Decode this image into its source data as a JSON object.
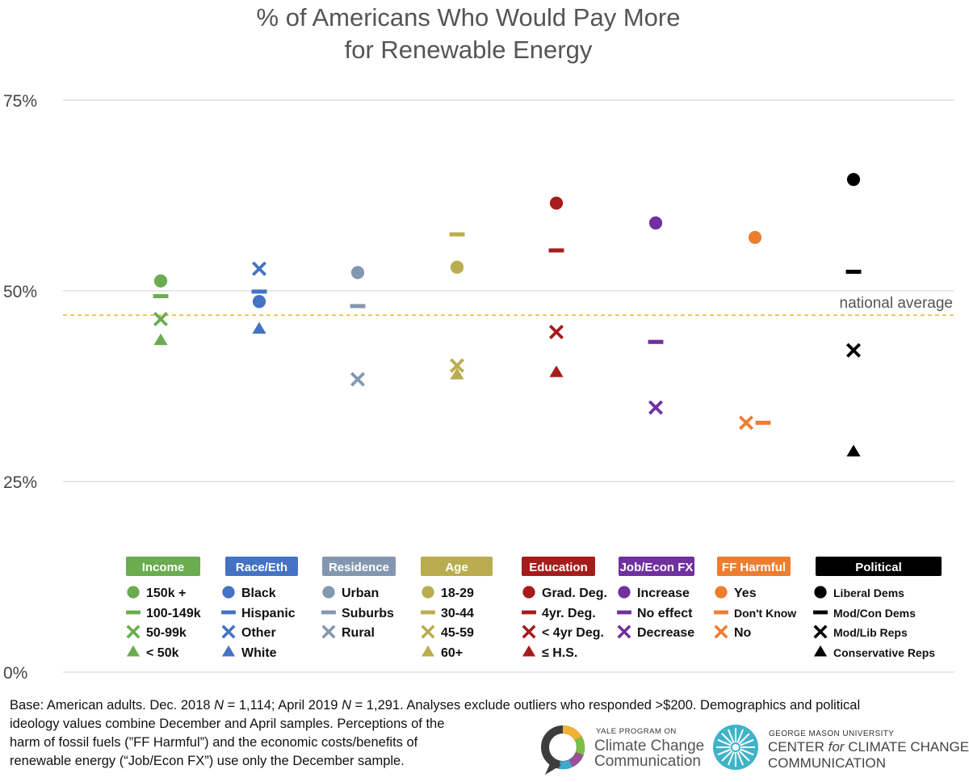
{
  "chart_data": {
    "type": "scatter",
    "title": [
      "% of Americans Who Would Pay More",
      "for Renewable Energy"
    ],
    "y_ticks": [
      "0%",
      "25%",
      "50%",
      "75%"
    ],
    "ylim": [
      0,
      75
    ],
    "reference_line": {
      "label": "national average",
      "value": 46.8,
      "color": "#f0b73a",
      "style": "dashed"
    },
    "groups": [
      {
        "name": "Income",
        "color": "#6aac4f",
        "title_text": "#ffffff",
        "items": [
          {
            "label": "150k +",
            "marker": "circle",
            "value": 51.3
          },
          {
            "label": "100-149k",
            "marker": "dash",
            "value": 49.3
          },
          {
            "label": "50-99k",
            "marker": "x",
            "value": 46.3
          },
          {
            "label": "< 50k",
            "marker": "triangle",
            "value": 43.5
          }
        ]
      },
      {
        "name": "Race/Eth",
        "color": "#4472c4",
        "title_text": "#ffffff",
        "items": [
          {
            "label": "Black",
            "marker": "circle",
            "value": 48.6
          },
          {
            "label": "Hispanic",
            "marker": "dash",
            "value": 49.9
          },
          {
            "label": "Other",
            "marker": "x",
            "value": 52.9
          },
          {
            "label": "White",
            "marker": "triangle",
            "value": 45.0
          }
        ]
      },
      {
        "name": "Residence",
        "color": "#8497b0",
        "title_text": "#ffffff",
        "items": [
          {
            "label": "Urban",
            "marker": "circle",
            "value": 52.4
          },
          {
            "label": "Suburbs",
            "marker": "dash",
            "value": 48.0
          },
          {
            "label": "Rural",
            "marker": "x",
            "value": 38.4
          }
        ]
      },
      {
        "name": "Age",
        "color": "#b9ad4f",
        "title_text": "#ffffff",
        "items": [
          {
            "label": "18-29",
            "marker": "circle",
            "value": 53.1
          },
          {
            "label": "30-44",
            "marker": "dash",
            "value": 57.4
          },
          {
            "label": "45-59",
            "marker": "x",
            "value": 40.2
          },
          {
            "label": "60+",
            "marker": "triangle",
            "value": 39.0
          }
        ]
      },
      {
        "name": "Education",
        "color": "#a51c1c",
        "title_text": "#ffffff",
        "items": [
          {
            "label": "Grad. Deg.",
            "marker": "circle",
            "value": 61.5
          },
          {
            "label": "4yr. Deg.",
            "marker": "dash",
            "value": 55.3
          },
          {
            "label": "< 4yr Deg.",
            "marker": "x",
            "value": 44.6
          },
          {
            "label": "≤ H.S.",
            "marker": "triangle",
            "value": 39.3
          }
        ]
      },
      {
        "name": "Job/Econ FX",
        "color": "#7030a0",
        "title_text": "#ffffff",
        "items": [
          {
            "label": "Increase",
            "marker": "circle",
            "value": 58.9
          },
          {
            "label": "No effect",
            "marker": "dash",
            "value": 43.3
          },
          {
            "label": "Decrease",
            "marker": "x",
            "value": 34.7
          }
        ]
      },
      {
        "name": "FF Harmful",
        "color": "#ed7d31",
        "title_text": "#ffffff",
        "items": [
          {
            "label": "Yes",
            "marker": "circle",
            "value": 57.0
          },
          {
            "label": "Don't Know",
            "marker": "dash",
            "value": 32.7
          },
          {
            "label": "No",
            "marker": "x",
            "value": 32.7
          }
        ]
      },
      {
        "name": "Political",
        "color": "#000000",
        "title_text": "#ffffff",
        "items": [
          {
            "label": "Liberal Dems",
            "marker": "circle",
            "value": 64.6
          },
          {
            "label": "Mod/Con Dems",
            "marker": "dash",
            "value": 52.5
          },
          {
            "label": "Mod/Lib Reps",
            "marker": "x",
            "value": 42.2
          },
          {
            "label": "Conservative Reps",
            "marker": "triangle",
            "value": 28.9
          }
        ]
      }
    ]
  },
  "footnote": {
    "line1_a": "Base: American adults. Dec. 2018 ",
    "n1": "N",
    "line1_b": " = 1,114; April 2019 ",
    "n2": "N",
    "line1_c": " = 1,291. Analyses exclude outliers who responded >$200. Demographics and political",
    "line2": "ideology values combine December and April samples. Perceptions of the",
    "line3": "harm of fossil fuels (”FF Harmful”) and the economic costs/benefits of",
    "line4": "renewable energy (“Job/Econ FX”) use only the December sample."
  },
  "logos": {
    "yale": {
      "small": "YALE PROGRAM ON",
      "line1": "Climate Change",
      "line2": "Communication"
    },
    "gmu": {
      "small": "GEORGE MASON UNIVERSITY",
      "line1a": "CENTER ",
      "line1b": "for",
      "line1c": " CLIMATE CHANGE",
      "line2": "COMMUNICATION"
    }
  }
}
